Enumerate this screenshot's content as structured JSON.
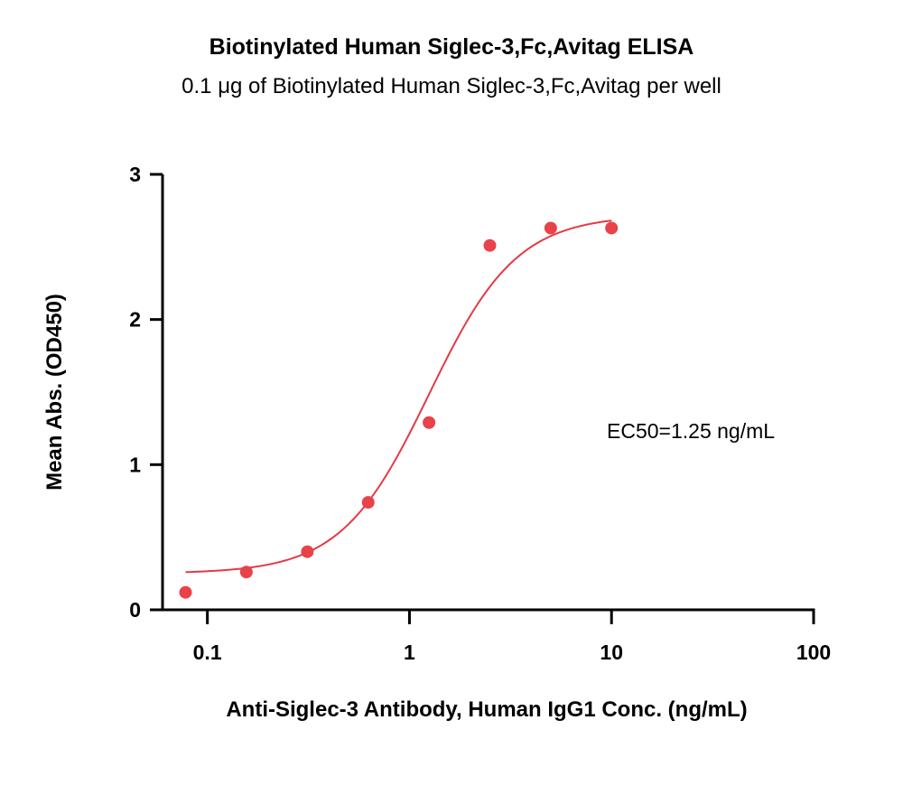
{
  "chart_data": {
    "type": "scatter",
    "title": "Biotinylated Human Siglec-3,Fc,Avitag ELISA",
    "subtitle": "0.1 μg of Biotinylated Human Siglec-3,Fc,Avitag per well",
    "xlabel": "Anti-Siglec-3 Antibody, Human IgG1 Conc. (ng/mL)",
    "ylabel": "Mean Abs. (OD450)",
    "x_scale": "log",
    "xlim": [
      0.06,
      100
    ],
    "ylim": [
      0,
      3
    ],
    "x_ticks": [
      0.1,
      1,
      10,
      100
    ],
    "x_tick_labels": [
      "0.1",
      "1",
      "10",
      "100"
    ],
    "y_ticks": [
      0,
      1,
      2,
      3
    ],
    "y_tick_labels": [
      "0",
      "1",
      "2",
      "3"
    ],
    "grid": false,
    "marker_color": "#e8424a",
    "line_color": "#e23b45",
    "points": [
      {
        "x": 0.078,
        "y": 0.12
      },
      {
        "x": 0.156,
        "y": 0.26
      },
      {
        "x": 0.3125,
        "y": 0.4
      },
      {
        "x": 0.625,
        "y": 0.74
      },
      {
        "x": 1.25,
        "y": 1.29
      },
      {
        "x": 2.5,
        "y": 2.51
      },
      {
        "x": 5,
        "y": 2.63
      },
      {
        "x": 10,
        "y": 2.63
      }
    ],
    "fit": {
      "model": "4PL",
      "bottom": 0.25,
      "top": 2.72,
      "ec50": 1.25,
      "hill": 2.0,
      "x_range": [
        0.078,
        10
      ]
    },
    "annotations": [
      {
        "text": "EC50=1.25 ng/mL"
      }
    ]
  }
}
